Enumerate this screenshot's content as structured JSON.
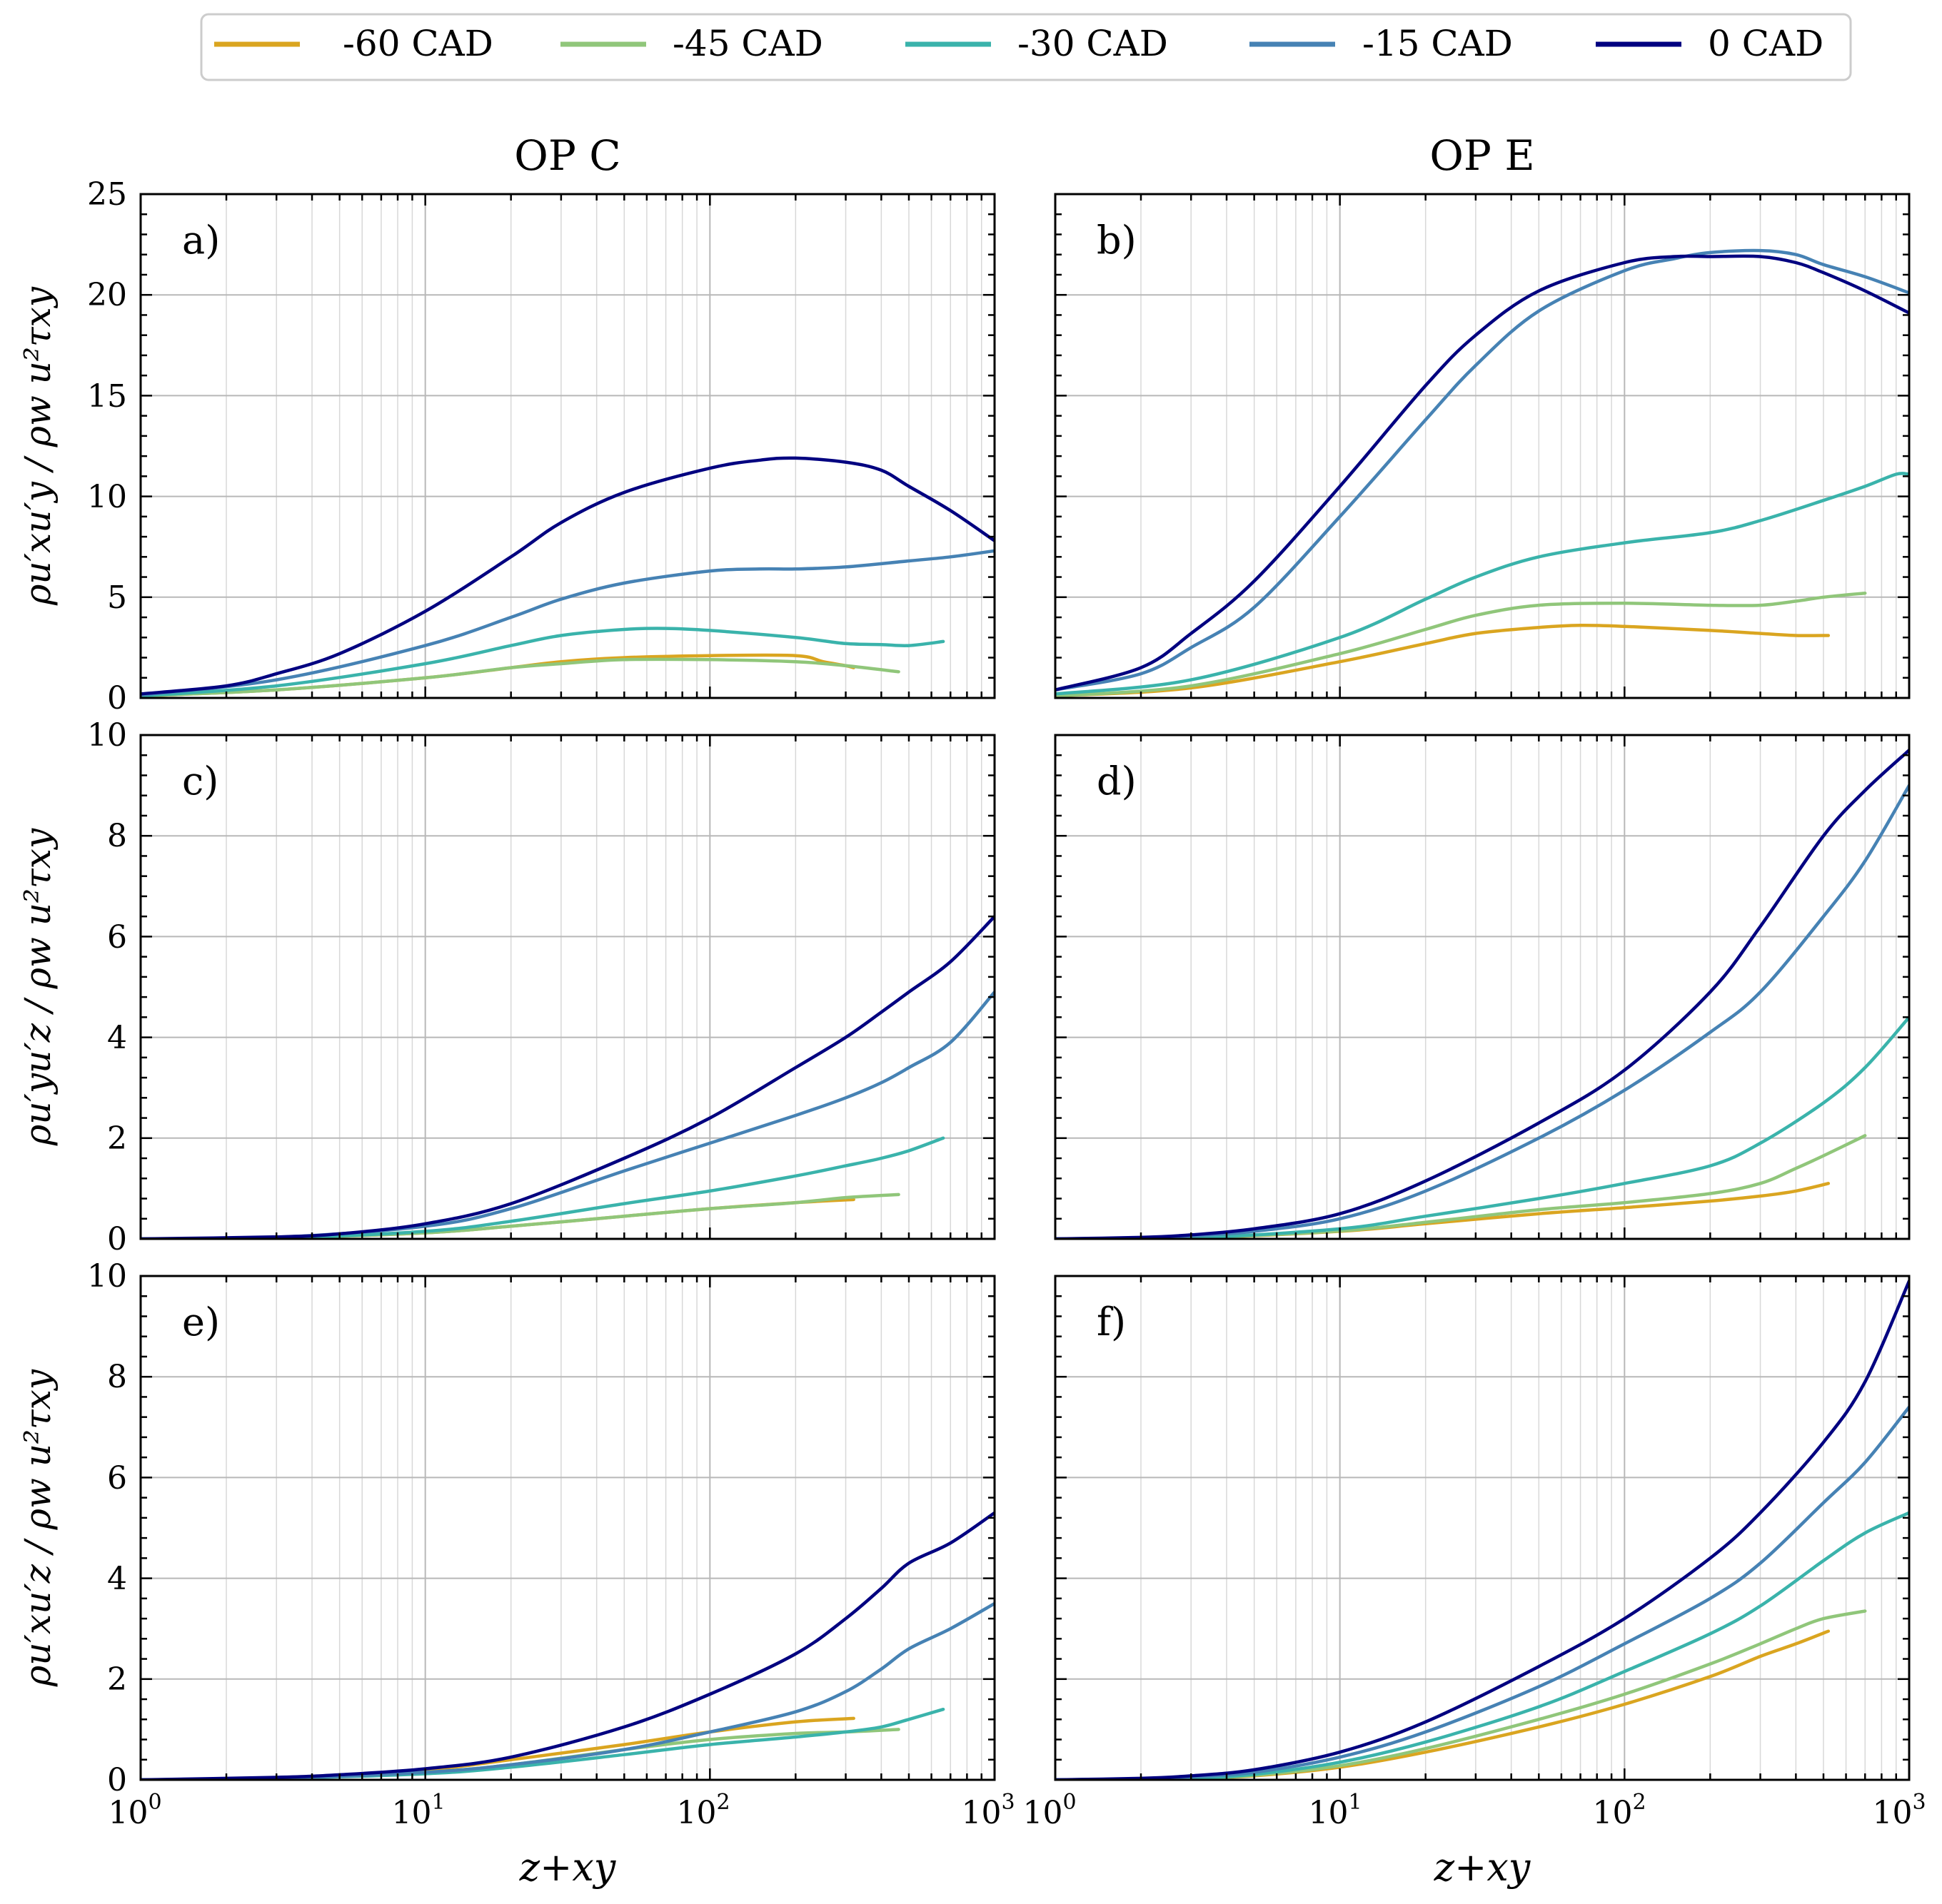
{
  "colors": {
    "-60 CAD": "#daa520",
    "-45 CAD": "#90c67a",
    "-30 CAD": "#3ab3ab",
    "-15 CAD": "#4682b4",
    "0 CAD": "#000080"
  },
  "legend": [
    "-60 CAD",
    "-45 CAD",
    "-30 CAD",
    "-15 CAD",
    "0 CAD"
  ],
  "columns": {
    "left": "OP C",
    "right": "OP E"
  },
  "xlabel": "z+xy",
  "ylabels": [
    "ρu′xu′y / ρw u²τxy",
    "ρu′yu′z / ρw u²τxy",
    "ρu′xu′z / ρw u²τxy"
  ],
  "x_ticks": [
    {
      "base": "10",
      "exp": "0"
    },
    {
      "base": "10",
      "exp": "1"
    },
    {
      "base": "10",
      "exp": "2"
    },
    {
      "base": "10",
      "exp": "3"
    }
  ],
  "y_ticks": {
    "row1": [
      "0",
      "5",
      "10",
      "15",
      "20",
      "25"
    ],
    "row2": [
      "0",
      "2",
      "4",
      "6",
      "8",
      "10"
    ],
    "row3": [
      "0",
      "2",
      "4",
      "6",
      "8",
      "10"
    ]
  },
  "chart_data": [
    {
      "type": "line",
      "panel": "a)",
      "title": "OP C",
      "xscale": "log",
      "xlim": [
        1,
        1000
      ],
      "ylim": [
        0,
        25
      ],
      "series": [
        {
          "name": "-60 CAD",
          "x": [
            1,
            3,
            10,
            20,
            30,
            50,
            100,
            200,
            250,
            300,
            320
          ],
          "y": [
            0.1,
            0.4,
            1.0,
            1.5,
            1.8,
            2.0,
            2.1,
            2.1,
            1.8,
            1.6,
            1.5
          ]
        },
        {
          "name": "-45 CAD",
          "x": [
            1,
            3,
            10,
            20,
            30,
            50,
            100,
            200,
            300,
            460
          ],
          "y": [
            0.1,
            0.4,
            1.0,
            1.5,
            1.7,
            1.9,
            1.9,
            1.8,
            1.6,
            1.3
          ]
        },
        {
          "name": "-30 CAD",
          "x": [
            1,
            3,
            10,
            20,
            30,
            50,
            70,
            100,
            200,
            300,
            400,
            500,
            660
          ],
          "y": [
            0.1,
            0.6,
            1.7,
            2.6,
            3.1,
            3.4,
            3.45,
            3.35,
            3.0,
            2.7,
            2.65,
            2.6,
            2.8
          ]
        },
        {
          "name": "-15 CAD",
          "x": [
            1,
            3,
            10,
            20,
            30,
            50,
            100,
            150,
            200,
            300,
            500,
            700,
            1000
          ],
          "y": [
            0.15,
            0.9,
            2.6,
            4.0,
            4.9,
            5.7,
            6.3,
            6.4,
            6.4,
            6.5,
            6.8,
            7.0,
            7.3
          ]
        },
        {
          "name": "0 CAD",
          "x": [
            1,
            2,
            3,
            5,
            10,
            20,
            30,
            50,
            100,
            150,
            200,
            300,
            400,
            500,
            700,
            1000
          ],
          "y": [
            0.2,
            0.6,
            1.2,
            2.2,
            4.3,
            7.0,
            8.7,
            10.2,
            11.4,
            11.8,
            11.9,
            11.7,
            11.3,
            10.5,
            9.3,
            7.8
          ]
        }
      ]
    },
    {
      "type": "line",
      "panel": "b)",
      "title": "OP E",
      "xscale": "log",
      "xlim": [
        1,
        1000
      ],
      "ylim": [
        0,
        25
      ],
      "series": [
        {
          "name": "-60 CAD",
          "x": [
            1,
            3,
            10,
            20,
            30,
            50,
            70,
            100,
            200,
            300,
            400,
            520
          ],
          "y": [
            0.1,
            0.5,
            1.8,
            2.7,
            3.2,
            3.5,
            3.6,
            3.55,
            3.35,
            3.2,
            3.1,
            3.1
          ]
        },
        {
          "name": "-45 CAD",
          "x": [
            1,
            3,
            10,
            20,
            30,
            50,
            100,
            200,
            300,
            400,
            500,
            700
          ],
          "y": [
            0.1,
            0.6,
            2.2,
            3.4,
            4.1,
            4.6,
            4.7,
            4.6,
            4.6,
            4.8,
            5.0,
            5.2
          ]
        },
        {
          "name": "-30 CAD",
          "x": [
            1,
            3,
            10,
            20,
            30,
            50,
            100,
            200,
            300,
            500,
            700,
            900,
            1000
          ],
          "y": [
            0.2,
            0.9,
            3.0,
            4.9,
            6.0,
            7.0,
            7.7,
            8.2,
            8.8,
            9.8,
            10.5,
            11.1,
            11.1
          ]
        },
        {
          "name": "-15 CAD",
          "x": [
            1,
            2,
            3,
            5,
            10,
            20,
            30,
            50,
            100,
            150,
            200,
            300,
            400,
            500,
            700,
            1000
          ],
          "y": [
            0.4,
            1.2,
            2.5,
            4.5,
            9.0,
            13.8,
            16.5,
            19.2,
            21.2,
            21.8,
            22.1,
            22.2,
            22.0,
            21.5,
            20.9,
            20.1
          ]
        },
        {
          "name": "0 CAD",
          "x": [
            1,
            2,
            3,
            5,
            10,
            20,
            30,
            50,
            100,
            150,
            200,
            300,
            400,
            500,
            700,
            1000
          ],
          "y": [
            0.4,
            1.5,
            3.2,
            5.8,
            10.5,
            15.5,
            18.0,
            20.2,
            21.6,
            21.9,
            21.9,
            21.9,
            21.6,
            21.1,
            20.2,
            19.1
          ]
        }
      ]
    },
    {
      "type": "line",
      "panel": "c)",
      "title": "OP C",
      "xscale": "log",
      "xlim": [
        1,
        1000
      ],
      "ylim": [
        0,
        10
      ],
      "series": [
        {
          "name": "-60 CAD",
          "x": [
            1,
            3,
            10,
            20,
            50,
            100,
            200,
            320
          ],
          "y": [
            0,
            0.02,
            0.12,
            0.25,
            0.45,
            0.6,
            0.72,
            0.78
          ]
        },
        {
          "name": "-45 CAD",
          "x": [
            1,
            3,
            10,
            20,
            50,
            100,
            200,
            300,
            460
          ],
          "y": [
            0,
            0.02,
            0.12,
            0.25,
            0.45,
            0.6,
            0.72,
            0.82,
            0.88
          ]
        },
        {
          "name": "-30 CAD",
          "x": [
            1,
            3,
            10,
            20,
            50,
            100,
            200,
            300,
            400,
            500,
            660
          ],
          "y": [
            0,
            0.02,
            0.15,
            0.35,
            0.7,
            0.95,
            1.25,
            1.45,
            1.6,
            1.75,
            2.0
          ]
        },
        {
          "name": "-15 CAD",
          "x": [
            1,
            3,
            10,
            20,
            50,
            100,
            200,
            300,
            400,
            500,
            700,
            1000
          ],
          "y": [
            0,
            0.03,
            0.25,
            0.6,
            1.35,
            1.9,
            2.45,
            2.8,
            3.1,
            3.4,
            3.9,
            4.9
          ]
        },
        {
          "name": "0 CAD",
          "x": [
            1,
            3,
            5,
            10,
            20,
            50,
            100,
            200,
            300,
            400,
            500,
            700,
            1000
          ],
          "y": [
            0,
            0.04,
            0.1,
            0.3,
            0.7,
            1.6,
            2.4,
            3.4,
            4.0,
            4.5,
            4.9,
            5.5,
            6.4
          ]
        }
      ]
    },
    {
      "type": "line",
      "panel": "d)",
      "title": "OP E",
      "xscale": "log",
      "xlim": [
        1,
        1000
      ],
      "ylim": [
        0,
        10
      ],
      "series": [
        {
          "name": "-60 CAD",
          "x": [
            1,
            3,
            10,
            20,
            50,
            100,
            200,
            300,
            400,
            520
          ],
          "y": [
            0,
            0.02,
            0.15,
            0.3,
            0.5,
            0.62,
            0.75,
            0.85,
            0.95,
            1.1
          ]
        },
        {
          "name": "-45 CAD",
          "x": [
            1,
            3,
            10,
            20,
            50,
            100,
            200,
            300,
            400,
            500,
            700
          ],
          "y": [
            0,
            0.02,
            0.16,
            0.33,
            0.58,
            0.72,
            0.9,
            1.1,
            1.4,
            1.65,
            2.05
          ]
        },
        {
          "name": "-30 CAD",
          "x": [
            1,
            3,
            10,
            20,
            50,
            100,
            200,
            300,
            500,
            700,
            1000
          ],
          "y": [
            0,
            0.02,
            0.2,
            0.45,
            0.8,
            1.1,
            1.45,
            1.9,
            2.7,
            3.4,
            4.4
          ]
        },
        {
          "name": "-15 CAD",
          "x": [
            1,
            2,
            3,
            5,
            10,
            20,
            50,
            100,
            200,
            300,
            500,
            700,
            1000
          ],
          "y": [
            0,
            0.02,
            0.06,
            0.15,
            0.4,
            0.95,
            2.0,
            2.95,
            4.1,
            4.9,
            6.4,
            7.5,
            9.0
          ]
        },
        {
          "name": "0 CAD",
          "x": [
            1,
            2,
            3,
            5,
            10,
            20,
            50,
            100,
            200,
            300,
            500,
            700,
            1000
          ],
          "y": [
            0,
            0.03,
            0.08,
            0.2,
            0.5,
            1.15,
            2.3,
            3.35,
            4.9,
            6.2,
            8.0,
            8.9,
            9.7
          ]
        }
      ]
    },
    {
      "type": "line",
      "panel": "e)",
      "title": "OP C",
      "xscale": "log",
      "xlim": [
        1,
        1000
      ],
      "ylim": [
        0,
        10
      ],
      "series": [
        {
          "name": "-60 CAD",
          "x": [
            1,
            3,
            10,
            20,
            50,
            100,
            200,
            320
          ],
          "y": [
            0,
            0.04,
            0.2,
            0.4,
            0.7,
            0.95,
            1.15,
            1.22
          ]
        },
        {
          "name": "-45 CAD",
          "x": [
            1,
            3,
            10,
            20,
            50,
            100,
            200,
            300,
            460
          ],
          "y": [
            0,
            0.03,
            0.15,
            0.3,
            0.6,
            0.8,
            0.92,
            0.95,
            1.0
          ]
        },
        {
          "name": "-30 CAD",
          "x": [
            1,
            3,
            10,
            20,
            50,
            100,
            200,
            300,
            400,
            500,
            660
          ],
          "y": [
            0,
            0.03,
            0.12,
            0.25,
            0.5,
            0.7,
            0.85,
            0.95,
            1.05,
            1.2,
            1.4
          ]
        },
        {
          "name": "-15 CAD",
          "x": [
            1,
            3,
            10,
            20,
            50,
            100,
            200,
            300,
            400,
            500,
            700,
            1000
          ],
          "y": [
            0,
            0.03,
            0.15,
            0.3,
            0.6,
            0.95,
            1.35,
            1.75,
            2.2,
            2.6,
            3.0,
            3.5
          ]
        },
        {
          "name": "0 CAD",
          "x": [
            1,
            3,
            5,
            10,
            20,
            50,
            100,
            200,
            300,
            400,
            500,
            700,
            1000
          ],
          "y": [
            0,
            0.05,
            0.1,
            0.22,
            0.45,
            1.05,
            1.7,
            2.5,
            3.2,
            3.8,
            4.3,
            4.7,
            5.3
          ]
        }
      ]
    },
    {
      "type": "line",
      "panel": "f)",
      "title": "OP E",
      "xscale": "log",
      "xlim": [
        1,
        1000
      ],
      "ylim": [
        0,
        10
      ],
      "series": [
        {
          "name": "-60 CAD",
          "x": [
            1,
            3,
            5,
            10,
            20,
            50,
            100,
            200,
            300,
            400,
            520
          ],
          "y": [
            0,
            0.03,
            0.08,
            0.25,
            0.55,
            1.05,
            1.5,
            2.05,
            2.45,
            2.7,
            2.95
          ]
        },
        {
          "name": "-45 CAD",
          "x": [
            1,
            3,
            5,
            10,
            20,
            50,
            100,
            200,
            300,
            400,
            500,
            700
          ],
          "y": [
            0,
            0.03,
            0.09,
            0.28,
            0.62,
            1.2,
            1.7,
            2.3,
            2.7,
            3.0,
            3.2,
            3.35
          ]
        },
        {
          "name": "-30 CAD",
          "x": [
            1,
            3,
            5,
            10,
            20,
            50,
            100,
            200,
            300,
            500,
            700,
            1000
          ],
          "y": [
            0,
            0.04,
            0.11,
            0.35,
            0.75,
            1.45,
            2.15,
            2.9,
            3.45,
            4.35,
            4.9,
            5.3
          ]
        },
        {
          "name": "-15 CAD",
          "x": [
            1,
            2,
            3,
            5,
            10,
            20,
            50,
            100,
            200,
            300,
            500,
            700,
            1000
          ],
          "y": [
            0,
            0.02,
            0.06,
            0.15,
            0.45,
            0.95,
            1.85,
            2.7,
            3.6,
            4.3,
            5.5,
            6.3,
            7.4
          ]
        },
        {
          "name": "0 CAD",
          "x": [
            1,
            2,
            3,
            5,
            10,
            20,
            50,
            100,
            200,
            300,
            500,
            700,
            1000
          ],
          "y": [
            0,
            0.03,
            0.08,
            0.2,
            0.55,
            1.15,
            2.25,
            3.2,
            4.4,
            5.3,
            6.7,
            7.9,
            9.9
          ]
        }
      ]
    }
  ]
}
